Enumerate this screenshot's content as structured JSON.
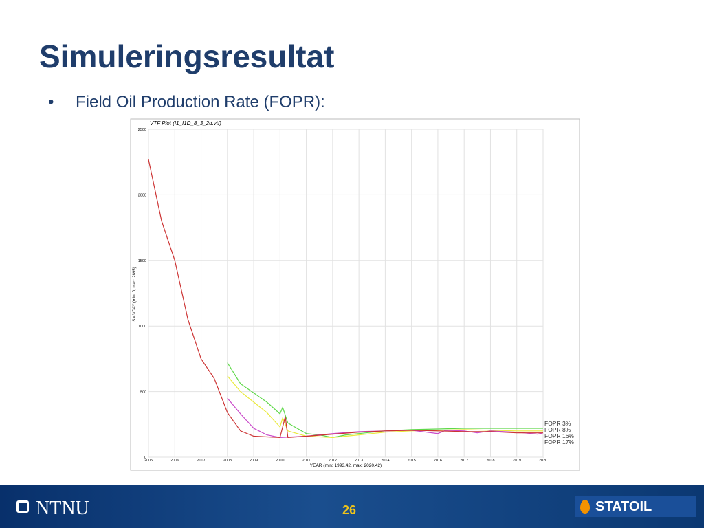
{
  "slide": {
    "title": "Simuleringsresultat",
    "bullet": "•",
    "bullet_text": "Field Oil Production Rate (FOPR):"
  },
  "footer": {
    "left": "NTNU",
    "page": "26",
    "right": "STATOIL"
  },
  "chart_data": {
    "type": "line",
    "title": "VTF Plot (I1_I1D_8_3_2d.vtf)",
    "y_label": "SM3/DAY (min: 0, max: 2895)",
    "x_label": "YEAR (min: 1993.42, max: 2020.42)",
    "xlim": [
      2005,
      2020
    ],
    "xticks": [
      2005,
      2006,
      2007,
      2008,
      2009,
      2010,
      2011,
      2012,
      2013,
      2014,
      2015,
      2016,
      2017,
      2018,
      2019,
      2020
    ],
    "ylim": [
      0,
      2500
    ],
    "yticks": [
      0,
      500,
      1000,
      1500,
      2000,
      2500
    ],
    "grid": true,
    "legend": "right",
    "series": [
      {
        "name": "FOPR 3%",
        "color": "#5fd84a",
        "x": [
          2008,
          2008.5,
          2009,
          2009.5,
          2010,
          2010.1,
          2010.3,
          2011,
          2011.5,
          2012,
          2012.5,
          2013,
          2014,
          2015,
          2016,
          2017,
          2018,
          2019,
          2020
        ],
        "values": [
          720,
          560,
          490,
          420,
          330,
          380,
          260,
          180,
          170,
          150,
          170,
          180,
          200,
          210,
          215,
          220,
          220,
          220,
          220
        ]
      },
      {
        "name": "FOPR 8%",
        "color": "#eaea3c",
        "x": [
          2008,
          2008.5,
          2009,
          2009.5,
          2010,
          2010.1,
          2010.3,
          2011,
          2012,
          2013,
          2014,
          2015,
          2016,
          2017,
          2018,
          2019,
          2020
        ],
        "values": [
          620,
          500,
          420,
          340,
          230,
          300,
          200,
          160,
          150,
          170,
          190,
          200,
          205,
          210,
          205,
          200,
          200
        ]
      },
      {
        "name": "FOPR 16%",
        "color": "#c948c9",
        "x": [
          2008,
          2008.5,
          2009,
          2009.5,
          2010,
          2011,
          2012,
          2013,
          2014,
          2015,
          2016,
          2016.3,
          2017,
          2017.5,
          2018,
          2019,
          2019.8,
          2020
        ],
        "values": [
          450,
          330,
          220,
          170,
          150,
          160,
          180,
          195,
          200,
          205,
          180,
          205,
          200,
          185,
          200,
          190,
          175,
          185
        ]
      },
      {
        "name": "FOPR 17%",
        "color": "#cc3333",
        "x": [
          2005,
          2005.5,
          2006,
          2006.5,
          2007,
          2007.5,
          2008,
          2008.5,
          2009,
          2010,
          2010.2,
          2010.3,
          2011,
          2012,
          2013,
          2014,
          2015,
          2016,
          2017,
          2018,
          2019,
          2020
        ],
        "values": [
          2270,
          1800,
          1500,
          1050,
          750,
          600,
          340,
          200,
          160,
          150,
          310,
          150,
          160,
          175,
          190,
          200,
          205,
          200,
          195,
          195,
          185,
          185
        ]
      }
    ]
  }
}
